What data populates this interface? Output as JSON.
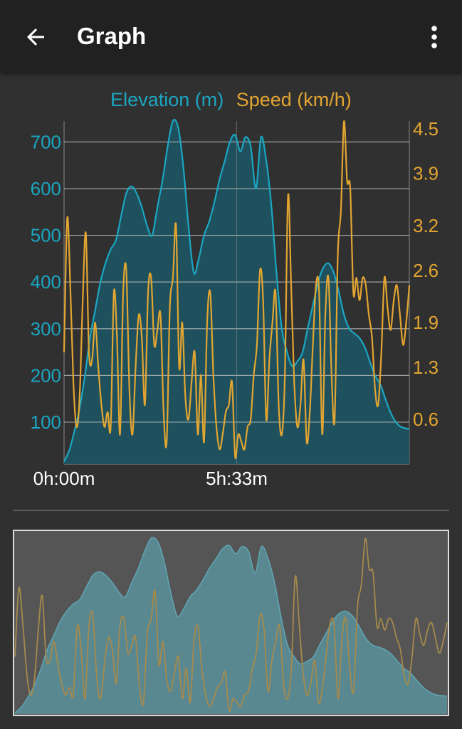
{
  "appbar": {
    "title": "Graph",
    "back_icon": "arrow-left-icon",
    "menu_icon": "more-vertical-icon"
  },
  "legend": {
    "elevation": "Elevation (m)",
    "speed": "Speed (km/h)"
  },
  "colors": {
    "elevation": "#1ba6c2",
    "elevation_fill": "#1e5360",
    "speed": "#e2a531",
    "grid": "#bdbdbd",
    "background": "#303030",
    "appbar": "#212121"
  },
  "chart_data": {
    "type": "area",
    "title": "",
    "xlabel": "",
    "ylabel": "Elevation (m)",
    "y2label": "Speed (km/h)",
    "x_unit": "hours",
    "xlim": [
      0,
      11.1
    ],
    "x_ticks": [
      {
        "x": 0,
        "label": "0h:00m"
      },
      {
        "x": 5.55,
        "label": "5h:33m"
      }
    ],
    "ylim": [
      10,
      760
    ],
    "y_ticks": [
      {
        "value": 100,
        "label": "100"
      },
      {
        "value": 200,
        "label": "200"
      },
      {
        "value": 300,
        "label": "300"
      },
      {
        "value": 400,
        "label": "400"
      },
      {
        "value": 500,
        "label": "500"
      },
      {
        "value": 600,
        "label": "600"
      },
      {
        "value": 700,
        "label": "700"
      }
    ],
    "y2lim": [
      0,
      4.7
    ],
    "y2_ticks": [
      {
        "value": 0.6,
        "label": "0.6"
      },
      {
        "value": 1.3,
        "label": "1.3"
      },
      {
        "value": 1.9,
        "label": "1.9"
      },
      {
        "value": 2.6,
        "label": "2.6"
      },
      {
        "value": 3.2,
        "label": "3.2"
      },
      {
        "value": 3.9,
        "label": "3.9"
      },
      {
        "value": 4.5,
        "label": "4.5"
      }
    ],
    "grid": true,
    "series": [
      {
        "name": "Elevation (m)",
        "axis": "left",
        "x": [
          0,
          0.17,
          0.33,
          0.5,
          0.67,
          0.83,
          1.0,
          1.17,
          1.33,
          1.5,
          1.67,
          1.83,
          2.0,
          2.17,
          2.33,
          2.5,
          2.67,
          2.83,
          3.0,
          3.17,
          3.33,
          3.5,
          3.67,
          3.83,
          4.0,
          4.17,
          4.33,
          4.5,
          4.67,
          4.83,
          5.0,
          5.17,
          5.33,
          5.5,
          5.67,
          5.83,
          6.0,
          6.17,
          6.33,
          6.5,
          6.67,
          6.83,
          7.0,
          7.17,
          7.33,
          7.5,
          7.67,
          7.83,
          8.0,
          8.17,
          8.33,
          8.5,
          8.67,
          8.83,
          9.0,
          9.17,
          9.33,
          9.5,
          9.67,
          9.83,
          10.0,
          10.17,
          10.33,
          10.5,
          10.67,
          10.83,
          11.1
        ],
        "values": [
          15,
          40,
          80,
          130,
          200,
          280,
          340,
          400,
          440,
          470,
          490,
          540,
          590,
          605,
          590,
          560,
          520,
          500,
          560,
          620,
          690,
          745,
          730,
          650,
          520,
          420,
          450,
          500,
          530,
          570,
          620,
          660,
          700,
          715,
          680,
          710,
          690,
          600,
          710,
          660,
          560,
          420,
          300,
          250,
          220,
          230,
          250,
          300,
          350,
          400,
          430,
          440,
          420,
          380,
          330,
          300,
          290,
          280,
          260,
          230,
          200,
          180,
          150,
          120,
          100,
          90,
          85
        ]
      },
      {
        "name": "Speed (km/h)",
        "axis": "right",
        "x": [
          0,
          0.1,
          0.2,
          0.3,
          0.4,
          0.5,
          0.6,
          0.7,
          0.8,
          0.9,
          1.0,
          1.1,
          1.2,
          1.3,
          1.4,
          1.5,
          1.6,
          1.7,
          1.8,
          1.9,
          2.0,
          2.1,
          2.2,
          2.3,
          2.4,
          2.5,
          2.6,
          2.7,
          2.8,
          2.9,
          3.0,
          3.1,
          3.2,
          3.3,
          3.4,
          3.5,
          3.6,
          3.7,
          3.8,
          3.9,
          4.0,
          4.1,
          4.2,
          4.3,
          4.4,
          4.5,
          4.6,
          4.7,
          4.8,
          4.9,
          5.0,
          5.1,
          5.2,
          5.3,
          5.4,
          5.5,
          5.6,
          5.7,
          5.8,
          5.9,
          6.0,
          6.1,
          6.2,
          6.3,
          6.4,
          6.5,
          6.6,
          6.7,
          6.8,
          6.9,
          7.0,
          7.1,
          7.2,
          7.3,
          7.4,
          7.5,
          7.6,
          7.7,
          7.8,
          7.9,
          8.0,
          8.1,
          8.2,
          8.3,
          8.4,
          8.5,
          8.6,
          8.7,
          8.8,
          8.9,
          9.0,
          9.1,
          9.2,
          9.3,
          9.4,
          9.5,
          9.6,
          9.7,
          9.8,
          9.9,
          10.0,
          10.1,
          10.2,
          10.3,
          10.4,
          10.5,
          10.6,
          10.7,
          10.8,
          10.9,
          11.0,
          11.1
        ],
        "values": [
          1.5,
          3.3,
          2.4,
          1.1,
          0.5,
          0.9,
          2.2,
          3.1,
          1.5,
          1.4,
          1.9,
          1.3,
          0.8,
          0.5,
          0.7,
          0.5,
          2.3,
          1.7,
          0.4,
          2.3,
          2.6,
          1.0,
          0.4,
          1.3,
          2.0,
          1.7,
          0.8,
          2.3,
          2.5,
          1.6,
          1.8,
          2.0,
          0.7,
          0.3,
          2.1,
          2.5,
          3.2,
          1.3,
          1.9,
          0.9,
          0.6,
          1.1,
          1.5,
          0.4,
          1.2,
          0.3,
          1.9,
          2.3,
          1.2,
          0.5,
          0.2,
          0.4,
          0.7,
          0.8,
          1.1,
          0.1,
          0.4,
          0.3,
          0.2,
          0.5,
          0.6,
          1.2,
          1.6,
          2.6,
          2.2,
          0.6,
          1.4,
          1.9,
          2.3,
          0.8,
          0.4,
          1.2,
          3.6,
          2.4,
          1.1,
          0.5,
          0.8,
          1.4,
          0.3,
          0.7,
          1.6,
          2.4,
          2.3,
          0.4,
          2.0,
          2.5,
          1.2,
          0.6,
          2.8,
          3.4,
          4.6,
          3.8,
          3.7,
          2.3,
          2.5,
          2.2,
          2.5,
          2.4,
          2.0,
          1.7,
          1.0,
          0.8,
          1.5,
          2.5,
          2.1,
          1.8,
          2.2,
          2.4,
          2.0,
          1.6,
          1.9,
          2.4
        ]
      }
    ]
  }
}
